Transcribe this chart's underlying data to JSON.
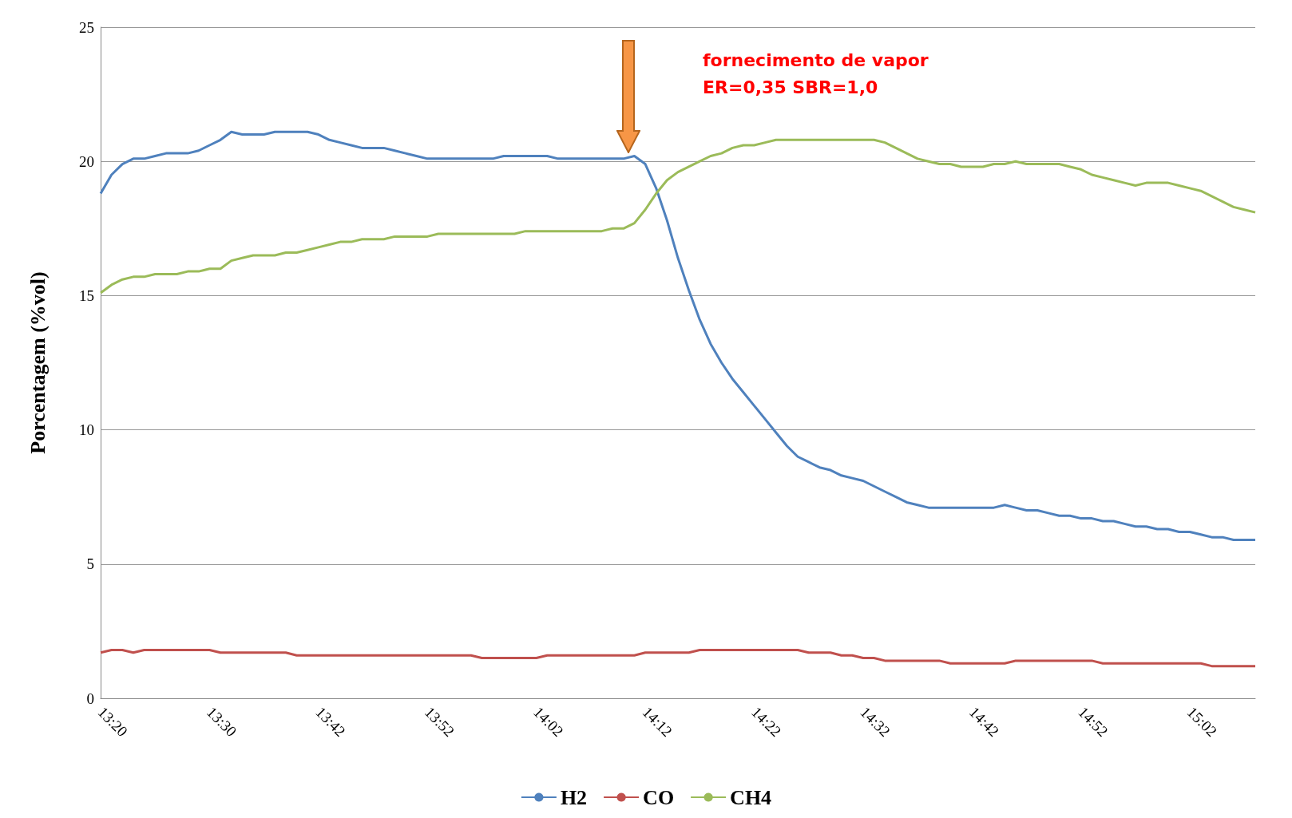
{
  "chart_data": {
    "type": "line",
    "ylabel": "Porcentagem (%vol)",
    "categories": [
      "13:20",
      null,
      null,
      null,
      null,
      null,
      null,
      null,
      null,
      null,
      "13:30",
      null,
      null,
      null,
      null,
      null,
      null,
      null,
      null,
      null,
      "13:42",
      null,
      null,
      null,
      null,
      null,
      null,
      null,
      null,
      null,
      "13:52",
      null,
      null,
      null,
      null,
      null,
      null,
      null,
      null,
      null,
      "14:02",
      null,
      null,
      null,
      null,
      null,
      null,
      null,
      null,
      null,
      "14:12",
      null,
      null,
      null,
      null,
      null,
      null,
      null,
      null,
      null,
      "14:22",
      null,
      null,
      null,
      null,
      null,
      null,
      null,
      null,
      null,
      "14:32",
      null,
      null,
      null,
      null,
      null,
      null,
      null,
      null,
      null,
      "14:42",
      null,
      null,
      null,
      null,
      null,
      null,
      null,
      null,
      null,
      "14:52",
      null,
      null,
      null,
      null,
      null,
      null,
      null,
      null,
      null,
      "15:02",
      null,
      null,
      null,
      null,
      null,
      null
    ],
    "series": [
      {
        "name": "H2",
        "color": "#4f81bd",
        "values": [
          18.8,
          19.5,
          19.9,
          20.1,
          20.1,
          20.2,
          20.3,
          20.3,
          20.3,
          20.4,
          20.6,
          20.8,
          21.1,
          21.0,
          21.0,
          21.0,
          21.1,
          21.1,
          21.1,
          21.1,
          21.0,
          20.8,
          20.7,
          20.6,
          20.5,
          20.5,
          20.5,
          20.4,
          20.3,
          20.2,
          20.1,
          20.1,
          20.1,
          20.1,
          20.1,
          20.1,
          20.1,
          20.2,
          20.2,
          20.2,
          20.2,
          20.2,
          20.1,
          20.1,
          20.1,
          20.1,
          20.1,
          20.1,
          20.1,
          20.2,
          19.9,
          19.0,
          17.8,
          16.4,
          15.2,
          14.1,
          13.2,
          12.5,
          11.9,
          11.4,
          10.9,
          10.4,
          9.9,
          9.4,
          9.0,
          8.8,
          8.6,
          8.5,
          8.3,
          8.2,
          8.1,
          7.9,
          7.7,
          7.5,
          7.3,
          7.2,
          7.1,
          7.1,
          7.1,
          7.1,
          7.1,
          7.1,
          7.1,
          7.2,
          7.1,
          7.0,
          7.0,
          6.9,
          6.8,
          6.8,
          6.7,
          6.7,
          6.6,
          6.6,
          6.5,
          6.4,
          6.4,
          6.3,
          6.3,
          6.2,
          6.2,
          6.1,
          6.0,
          6.0,
          5.9,
          5.9,
          5.9
        ]
      },
      {
        "name": "CO",
        "color": "#c0504d",
        "values": [
          1.7,
          1.8,
          1.8,
          1.7,
          1.8,
          1.8,
          1.8,
          1.8,
          1.8,
          1.8,
          1.8,
          1.7,
          1.7,
          1.7,
          1.7,
          1.7,
          1.7,
          1.7,
          1.6,
          1.6,
          1.6,
          1.6,
          1.6,
          1.6,
          1.6,
          1.6,
          1.6,
          1.6,
          1.6,
          1.6,
          1.6,
          1.6,
          1.6,
          1.6,
          1.6,
          1.5,
          1.5,
          1.5,
          1.5,
          1.5,
          1.5,
          1.6,
          1.6,
          1.6,
          1.6,
          1.6,
          1.6,
          1.6,
          1.6,
          1.6,
          1.7,
          1.7,
          1.7,
          1.7,
          1.7,
          1.8,
          1.8,
          1.8,
          1.8,
          1.8,
          1.8,
          1.8,
          1.8,
          1.8,
          1.8,
          1.7,
          1.7,
          1.7,
          1.6,
          1.6,
          1.5,
          1.5,
          1.4,
          1.4,
          1.4,
          1.4,
          1.4,
          1.4,
          1.3,
          1.3,
          1.3,
          1.3,
          1.3,
          1.3,
          1.4,
          1.4,
          1.4,
          1.4,
          1.4,
          1.4,
          1.4,
          1.4,
          1.3,
          1.3,
          1.3,
          1.3,
          1.3,
          1.3,
          1.3,
          1.3,
          1.3,
          1.3,
          1.2,
          1.2,
          1.2,
          1.2,
          1.2
        ]
      },
      {
        "name": "CH4",
        "color": "#9bbb59",
        "values": [
          15.1,
          15.4,
          15.6,
          15.7,
          15.7,
          15.8,
          15.8,
          15.8,
          15.9,
          15.9,
          16.0,
          16.0,
          16.3,
          16.4,
          16.5,
          16.5,
          16.5,
          16.6,
          16.6,
          16.7,
          16.8,
          16.9,
          17.0,
          17.0,
          17.1,
          17.1,
          17.1,
          17.2,
          17.2,
          17.2,
          17.2,
          17.3,
          17.3,
          17.3,
          17.3,
          17.3,
          17.3,
          17.3,
          17.3,
          17.4,
          17.4,
          17.4,
          17.4,
          17.4,
          17.4,
          17.4,
          17.4,
          17.5,
          17.5,
          17.7,
          18.2,
          18.8,
          19.3,
          19.6,
          19.8,
          20.0,
          20.2,
          20.3,
          20.5,
          20.6,
          20.6,
          20.7,
          20.8,
          20.8,
          20.8,
          20.8,
          20.8,
          20.8,
          20.8,
          20.8,
          20.8,
          20.8,
          20.7,
          20.5,
          20.3,
          20.1,
          20.0,
          19.9,
          19.9,
          19.8,
          19.8,
          19.8,
          19.9,
          19.9,
          20.0,
          19.9,
          19.9,
          19.9,
          19.9,
          19.8,
          19.7,
          19.5,
          19.4,
          19.3,
          19.2,
          19.1,
          19.2,
          19.2,
          19.2,
          19.1,
          19.0,
          18.9,
          18.7,
          18.5,
          18.3,
          18.2,
          18.1
        ]
      }
    ],
    "ylim": [
      0,
      25
    ],
    "yticks": [
      0,
      5,
      10,
      15,
      20,
      25
    ],
    "grid": "y",
    "legend": "bottom",
    "marker": "none",
    "line_style": "solid",
    "annotations": [
      "fornecimento de vapor\nER=0,35 SBR=1,0"
    ]
  }
}
